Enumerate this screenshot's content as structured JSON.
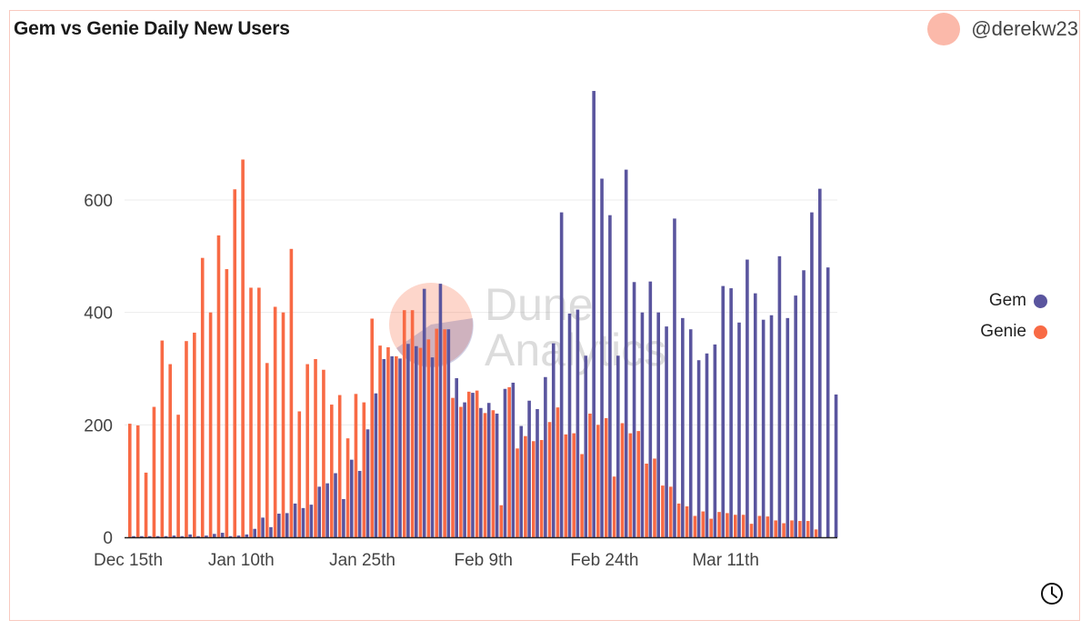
{
  "header": {
    "title": "Gem vs Genie Daily New Users",
    "author": "@derekw23"
  },
  "colors": {
    "gem": "#5a559e",
    "genie": "#f86a45",
    "avatar": "#fbb9aa",
    "border": "#f8c9bf"
  },
  "watermark": {
    "line1": "Dune",
    "line2": "Analytics"
  },
  "chart_data": {
    "type": "bar",
    "title": "Gem vs Genie Daily New Users",
    "xlabel": "",
    "ylabel": "",
    "ylim": [
      0,
      800
    ],
    "yticks": [
      0,
      200,
      400,
      600
    ],
    "grid": true,
    "legend_position": "right",
    "x_tick_labels": [
      {
        "index": 0,
        "label": "Dec 15th"
      },
      {
        "index": 14,
        "label": "Jan 10th"
      },
      {
        "index": 29,
        "label": "Jan 25th"
      },
      {
        "index": 44,
        "label": "Feb 9th"
      },
      {
        "index": 59,
        "label": "Feb 24th"
      },
      {
        "index": 74,
        "label": "Mar 11th"
      }
    ],
    "series": [
      {
        "name": "Genie",
        "color": "#f86a45",
        "values": [
          202,
          199,
          115,
          232,
          350,
          308,
          218,
          349,
          364,
          497,
          400,
          537,
          477,
          619,
          672,
          444,
          444,
          310,
          410,
          400,
          513,
          224,
          308,
          317,
          298,
          236,
          253,
          176,
          255,
          240,
          389,
          341,
          338,
          322,
          404,
          404,
          337,
          352,
          371,
          370,
          248,
          232,
          259,
          261,
          221,
          226,
          57,
          267,
          158,
          180,
          171,
          173,
          205,
          231,
          183,
          185,
          148,
          220,
          200,
          212,
          108,
          203,
          185,
          189,
          131,
          140,
          92,
          90,
          60,
          55,
          38,
          46,
          33,
          45,
          43,
          40,
          40,
          24,
          38,
          37,
          30,
          25,
          30,
          29,
          29,
          14,
          0,
          0
        ]
      },
      {
        "name": "Gem",
        "color": "#5a559e",
        "values": [
          2,
          2,
          2,
          2,
          2,
          3,
          2,
          5,
          2,
          3,
          6,
          8,
          2,
          3,
          5,
          15,
          35,
          18,
          42,
          43,
          60,
          52,
          58,
          90,
          96,
          114,
          68,
          138,
          118,
          192,
          256,
          317,
          322,
          318,
          344,
          340,
          442,
          320,
          451,
          370,
          283,
          240,
          257,
          230,
          239,
          220,
          264,
          275,
          198,
          243,
          228,
          285,
          345,
          578,
          398,
          405,
          323,
          794,
          638,
          573,
          323,
          654,
          454,
          400,
          455,
          400,
          375,
          567,
          390,
          370,
          315,
          327,
          343,
          447,
          443,
          382,
          494,
          434,
          387,
          395,
          500,
          390,
          430,
          475,
          578,
          620,
          480,
          254
        ]
      }
    ]
  },
  "legend": {
    "items": [
      {
        "label": "Gem",
        "color": "#5a559e"
      },
      {
        "label": "Genie",
        "color": "#f86a45"
      }
    ]
  },
  "footer": {
    "clock_icon": "clock-icon"
  }
}
